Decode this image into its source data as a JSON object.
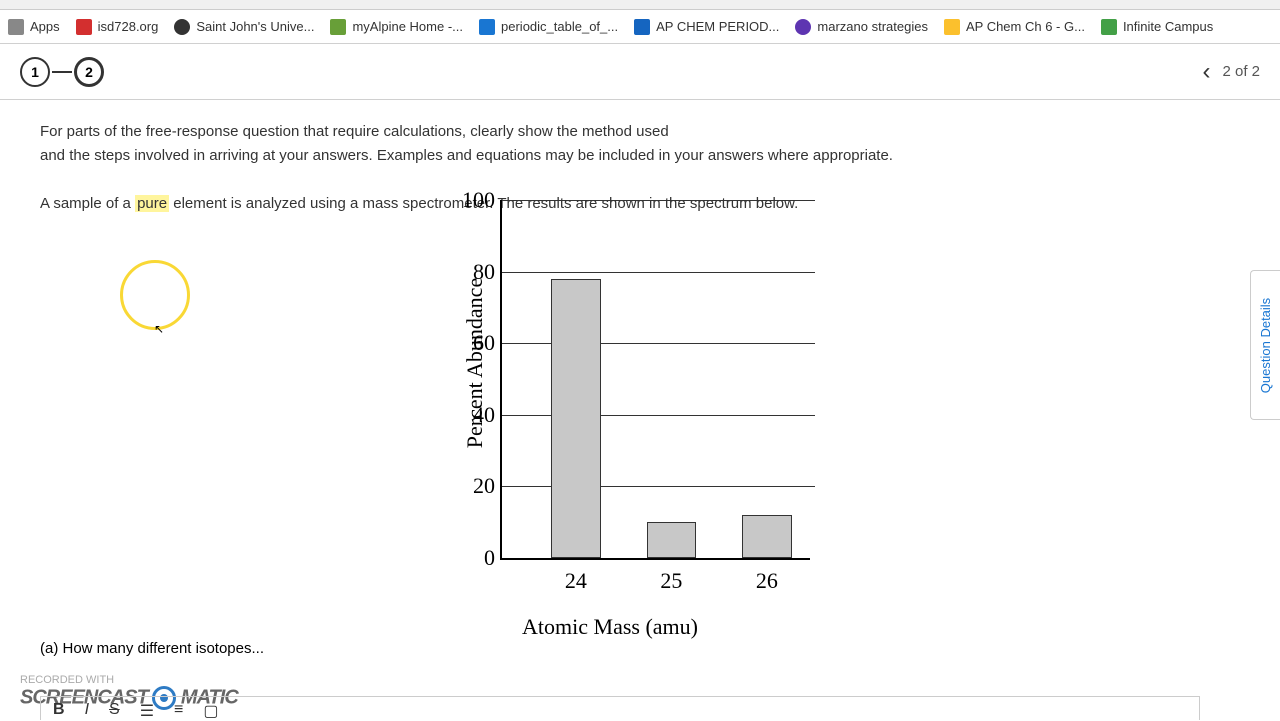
{
  "url_partial": "apclassroom.collegeboard.org/7/assessments/assign-quiz/a-...",
  "bookmarks": [
    {
      "label": "Apps",
      "color": "#888888"
    },
    {
      "label": "isd728.org",
      "color": "#d32f2f"
    },
    {
      "label": "Saint John's Unive...",
      "color": "#333333"
    },
    {
      "label": "myAlpine Home -...",
      "color": "#689f38"
    },
    {
      "label": "periodic_table_of_...",
      "color": "#1976d2"
    },
    {
      "label": "AP CHEM PERIOD...",
      "color": "#1565c0"
    },
    {
      "label": "marzano strategies",
      "color": "#5e35b1"
    },
    {
      "label": "AP Chem Ch 6 - G...",
      "color": "#fbc02d"
    },
    {
      "label": "Infinite Campus",
      "color": "#43a047"
    }
  ],
  "steps": {
    "step1": "1",
    "step2": "2"
  },
  "page_indicator": "2 of 2",
  "question": {
    "line1_a": "For parts of the free-response question that require calculations, clearly show the method used",
    "line1_b": "and the steps involved in arriving at your answers. Examples and equations may be included in your answers where appropriate.",
    "line2_a": "A sample of a ",
    "line2_highlight": "pure",
    "line2_b": " element is analyzed using a mass spectrometer. The results are shown in the spectrum below.",
    "part_a": "(a) How many different isotopes..."
  },
  "chart": {
    "type": "bar",
    "y_label": "Percent Abundance",
    "x_label": "Atomic Mass (amu)",
    "y_ticks": [
      0,
      20,
      40,
      60,
      80,
      100
    ],
    "bar_color": "#c8c8c8",
    "bars": [
      {
        "x": "24",
        "value": 78,
        "left_pct": 16,
        "width_pct": 16
      },
      {
        "x": "25",
        "value": 10,
        "left_pct": 47,
        "width_pct": 16
      },
      {
        "x": "26",
        "value": 12,
        "left_pct": 78,
        "width_pct": 16
      }
    ]
  },
  "side_tab": "Question Details",
  "watermark": {
    "recorded": "RECORDED WITH",
    "brand_left": "SCREENCAST",
    "brand_right": "MATIC"
  },
  "toolbar": {
    "bold": "B",
    "italic": "I",
    "strike": "S"
  }
}
